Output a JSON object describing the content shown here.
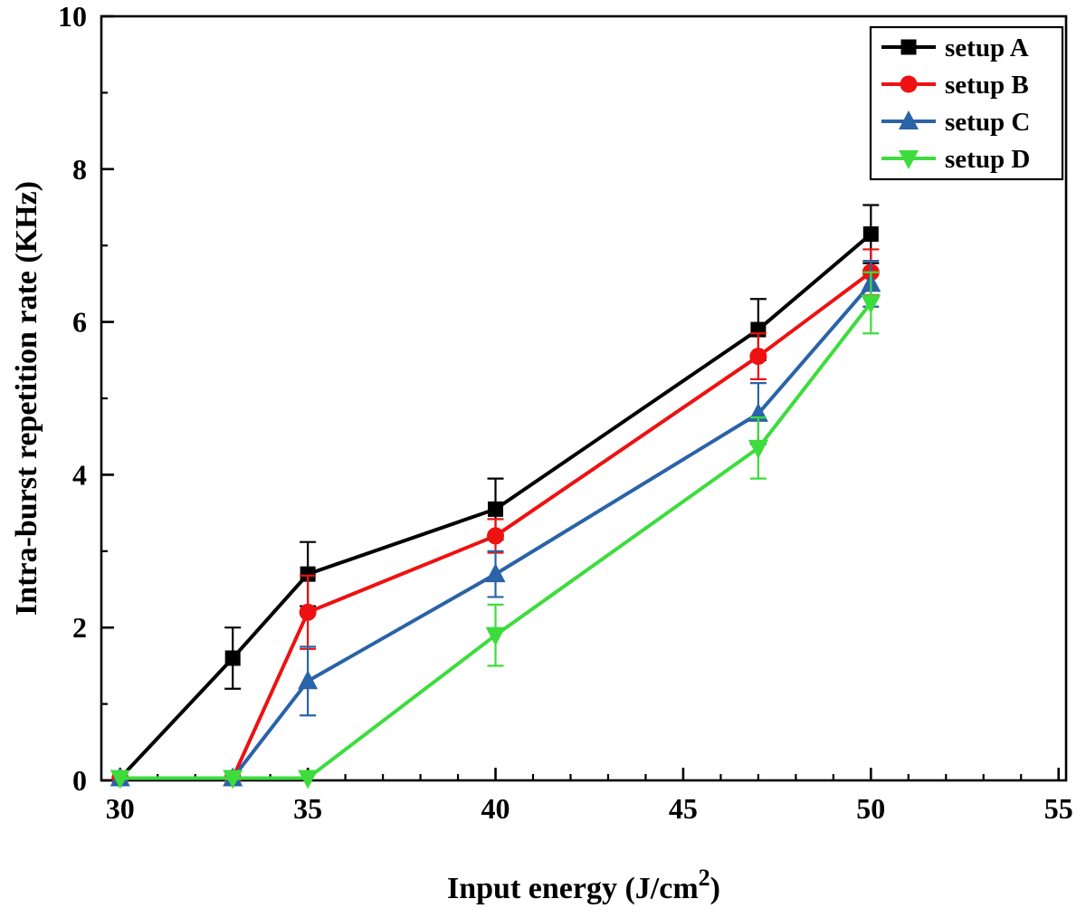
{
  "figure": {
    "background": "#ffffff",
    "frame_color": "#000000"
  },
  "chart_data": {
    "type": "line",
    "title": "",
    "xlabel": {
      "pre": "Input energy (J/cm",
      "sup": "2",
      "post": ")"
    },
    "ylabel": "Intra-burst repetition rate  (KHz)",
    "xlim": [
      29.5,
      55.2
    ],
    "ylim": [
      0,
      10
    ],
    "xticks": [
      30,
      35,
      40,
      45,
      50,
      55
    ],
    "yticks": [
      0,
      2,
      4,
      6,
      8,
      10
    ],
    "minor_x_step": 1,
    "minor_y_step": 1,
    "grid": false,
    "legend_position": "top-right",
    "x": [
      30,
      33,
      35,
      40,
      47,
      50
    ],
    "series": [
      {
        "name": "setup A",
        "color": "#000000",
        "marker": "square",
        "values": [
          0.03,
          1.6,
          2.7,
          3.55,
          5.9,
          7.15
        ],
        "errors": [
          0,
          0.4,
          0.42,
          0.4,
          0.4,
          0.38
        ]
      },
      {
        "name": "setup B",
        "color": "#ee1111",
        "marker": "circle",
        "values": [
          0.03,
          0.03,
          2.2,
          3.2,
          5.55,
          6.65
        ],
        "errors": [
          0,
          0,
          0.48,
          0.22,
          0.3,
          0.3
        ]
      },
      {
        "name": "setup C",
        "color": "#2a63a8",
        "marker": "triangle-up",
        "values": [
          0.03,
          0.03,
          1.3,
          2.7,
          4.8,
          6.5
        ],
        "errors": [
          0,
          0,
          0.45,
          0.3,
          0.4,
          0.3
        ]
      },
      {
        "name": "setup D",
        "color": "#3ddc3d",
        "marker": "triangle-down",
        "values": [
          0.03,
          0.03,
          0.03,
          1.9,
          4.35,
          6.25
        ],
        "errors": [
          0,
          0,
          0,
          0.4,
          0.4,
          0.4
        ]
      }
    ]
  }
}
